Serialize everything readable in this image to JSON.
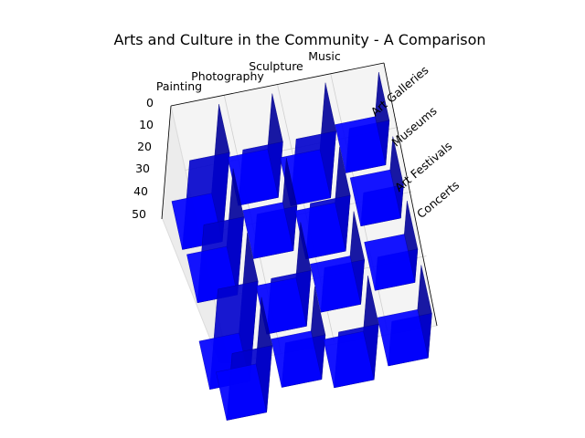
{
  "chart_data": {
    "type": "bar3d",
    "title": "Arts and Culture in the Community - A Comparison",
    "x_categories": [
      "Painting",
      "Photography",
      "Sculpture",
      "Music"
    ],
    "y_categories": [
      "Art Galleries",
      "Museums",
      "Art Festivals",
      "Concerts"
    ],
    "z_ticks": [
      "0",
      "10",
      "20",
      "30",
      "40",
      "50"
    ],
    "zlim": [
      0,
      50
    ],
    "values": [
      [
        40,
        25,
        30,
        20
      ],
      [
        35,
        20,
        25,
        15
      ],
      [
        45,
        25,
        20,
        15
      ],
      [
        30,
        20,
        25,
        20
      ]
    ],
    "bar_color": "#0000ff",
    "grid": true
  }
}
